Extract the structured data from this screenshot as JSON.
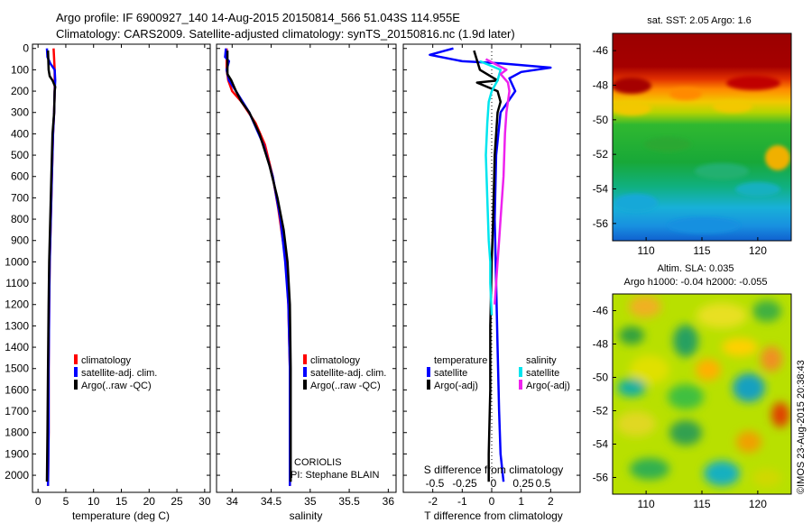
{
  "header": {
    "line1": "Argo profile: IF 6900927_140 14-Aug-2015 20150814_566 51.043S 114.955E",
    "line2": "Climatology: CARS2009. Satellite-adjusted climatology: synTS_20150816.nc (1.9d later)"
  },
  "colors": {
    "climatology": "#ff0000",
    "satellite": "#0000ff",
    "argo": "#000000",
    "sat_salinity": "#00e5ee",
    "argo_salinity": "#ee22ee"
  },
  "chart_data": [
    {
      "id": "temperature",
      "type": "line",
      "xlabel": "temperature (deg C)",
      "ylabel": "",
      "xlim": [
        -1,
        31
      ],
      "ylim": [
        2080,
        -20
      ],
      "xticks": [
        0,
        5,
        10,
        15,
        20,
        25,
        30
      ],
      "yticks": [
        0,
        100,
        200,
        300,
        400,
        500,
        600,
        700,
        800,
        900,
        1000,
        1100,
        1200,
        1300,
        1400,
        1500,
        1600,
        1700,
        1800,
        1900,
        2000
      ],
      "legend": [
        "climatology",
        "satellite-adj. clim.",
        "Argo(..raw -QC)"
      ],
      "series": [
        {
          "name": "climatology",
          "color": "#ff0000",
          "x": [
            2.8,
            2.9,
            3.0,
            3.0,
            3.0,
            2.9,
            2.7,
            2.5,
            2.3,
            2.1,
            2.0,
            1.9,
            1.9,
            1.8
          ],
          "y": [
            0,
            50,
            100,
            150,
            200,
            300,
            400,
            600,
            800,
            1000,
            1200,
            1500,
            1800,
            2050
          ]
        },
        {
          "name": "satellite-adj. clim.",
          "color": "#0000ff",
          "x": [
            1.6,
            1.7,
            2.2,
            3.0,
            3.1,
            3.0,
            2.9,
            2.7,
            2.5,
            2.3,
            2.1,
            2.0,
            1.9,
            1.9,
            1.8
          ],
          "y": [
            0,
            40,
            70,
            100,
            150,
            200,
            300,
            400,
            600,
            800,
            1000,
            1200,
            1500,
            1800,
            2050
          ]
        },
        {
          "name": "Argo(..raw -QC)",
          "color": "#000000",
          "x": [
            1.8,
            1.9,
            2.1,
            2.6,
            3.1,
            3.0,
            2.9,
            2.6,
            2.4,
            2.2,
            2.0,
            1.9,
            1.8,
            1.7,
            1.6
          ],
          "y": [
            10,
            100,
            130,
            150,
            180,
            200,
            300,
            400,
            600,
            800,
            1000,
            1200,
            1500,
            1800,
            2030
          ]
        }
      ]
    },
    {
      "id": "salinity",
      "type": "line",
      "xlabel": "salinity",
      "ylabel": "",
      "xlim": [
        33.8,
        36.1
      ],
      "ylim": [
        2080,
        -20
      ],
      "xticks": [
        34,
        34.5,
        35,
        35.5,
        36
      ],
      "legend": [
        "climatology",
        "satellite-adj. clim.",
        "Argo(..raw -QC)"
      ],
      "annotations": [
        "CORIOLIS",
        "PI: Stephane BLAIN"
      ],
      "series": [
        {
          "name": "climatology",
          "color": "#ff0000",
          "x": [
            33.93,
            33.93,
            33.95,
            34.0,
            34.12,
            34.3,
            34.42,
            34.52,
            34.59,
            34.65,
            34.69,
            34.72,
            34.74,
            34.74,
            34.74
          ],
          "y": [
            0,
            100,
            150,
            200,
            250,
            350,
            450,
            600,
            750,
            900,
            1000,
            1200,
            1500,
            1800,
            2050
          ]
        },
        {
          "name": "satellite-adj. clim.",
          "color": "#0000ff",
          "x": [
            33.92,
            33.91,
            33.96,
            33.93,
            33.96,
            34.05,
            34.22,
            34.4,
            34.52,
            34.62,
            34.68,
            34.72,
            34.74,
            34.74,
            34.74
          ],
          "y": [
            0,
            40,
            60,
            100,
            150,
            200,
            300,
            450,
            600,
            800,
            1000,
            1200,
            1500,
            1800,
            2050
          ]
        },
        {
          "name": "Argo(..raw -QC)",
          "color": "#000000",
          "x": [
            33.94,
            33.94,
            33.99,
            34.05,
            34.12,
            34.22,
            34.35,
            34.48,
            34.58,
            34.66,
            34.71,
            34.74,
            34.75,
            34.75,
            34.75
          ],
          "y": [
            10,
            120,
            150,
            200,
            250,
            300,
            400,
            550,
            700,
            850,
            1000,
            1200,
            1500,
            1800,
            2030
          ]
        }
      ]
    },
    {
      "id": "difference",
      "type": "line",
      "xlabel": "T difference from climatology",
      "ylabel": "",
      "xlim": [
        -3,
        3
      ],
      "ylim": [
        2080,
        -20
      ],
      "xticks": [
        -2,
        -1,
        0,
        1,
        2
      ],
      "top_axis": {
        "label": "S difference from climatology",
        "ticks": [
          "-0.5",
          "-0.25",
          "0",
          "0.25",
          "0.5"
        ]
      },
      "legend_headers": [
        "temperature",
        "salinity"
      ],
      "legend_temperature": [
        "satellite",
        "Argo(-adj)"
      ],
      "legend_salinity": [
        "satellite",
        "Argo(-adj)"
      ],
      "series": [
        {
          "name": "temperature satellite",
          "color": "#0000ff",
          "x": [
            -1.3,
            -2.1,
            -1.0,
            0.3,
            2.0,
            1.0,
            0.6,
            0.8,
            0.3,
            0.15,
            0.1,
            0.15,
            0.2,
            0.25,
            0.3,
            0.4
          ],
          "y": [
            0,
            30,
            60,
            70,
            90,
            110,
            140,
            200,
            300,
            500,
            800,
            1100,
            1400,
            1700,
            1900,
            2030
          ]
        },
        {
          "name": "temperature Argo(-adj)",
          "color": "#000000",
          "x": [
            -0.6,
            -0.4,
            0.2,
            -0.5,
            0.2,
            0.3,
            0.2,
            0.1,
            0.05,
            0.0,
            -0.05,
            -0.05,
            -0.1,
            -0.1
          ],
          "y": [
            10,
            100,
            150,
            160,
            200,
            250,
            300,
            500,
            800,
            1000,
            1300,
            1600,
            1900,
            2030
          ]
        },
        {
          "name": "salinity satellite",
          "color": "#00e5ee",
          "x": [
            -0.4,
            0.3,
            0.2,
            0.0,
            -0.1,
            -0.15,
            -0.2,
            -0.15,
            -0.1,
            -0.05,
            -0.05,
            0.0
          ],
          "y": [
            60,
            100,
            150,
            200,
            250,
            350,
            500,
            700,
            900,
            1000,
            1100,
            1250
          ]
        },
        {
          "name": "salinity Argo(-adj)",
          "color": "#ee22ee",
          "x": [
            -0.2,
            0.5,
            0.3,
            0.55,
            0.6,
            0.5,
            0.45,
            0.4,
            0.3,
            0.25,
            0.2,
            0.15,
            0.1
          ],
          "y": [
            50,
            100,
            120,
            160,
            200,
            300,
            400,
            600,
            800,
            900,
            1000,
            1100,
            1200
          ]
        }
      ]
    },
    {
      "id": "sst-map",
      "type": "heatmap",
      "title": "sat. SST: 2.05 Argo: 1.6",
      "xlim": [
        107,
        123
      ],
      "ylim": [
        -57,
        -45
      ],
      "xticks": [
        110,
        115,
        120
      ],
      "yticks": [
        -46,
        -48,
        -50,
        -52,
        -54,
        -56
      ],
      "note": "SST field: warm (dark red) north of -48, orange/yellow transition near -48 to -50, green to cyan to blue toward the south"
    },
    {
      "id": "sla-map",
      "type": "heatmap",
      "title": [
        "Altim. SLA: 0.035",
        "Argo h1000: -0.04 h2000: -0.055"
      ],
      "xlim": [
        107,
        123
      ],
      "ylim": [
        -57,
        -45
      ],
      "xticks": [
        110,
        115,
        120
      ],
      "yticks": [
        -46,
        -48,
        -50,
        -52,
        -54,
        -56
      ],
      "note": "sea level anomaly field: mostly green/yellow with orange patches and cyan/blue lows"
    }
  ],
  "watermark": "©IMOS 23-Aug-2015 20:38:43"
}
